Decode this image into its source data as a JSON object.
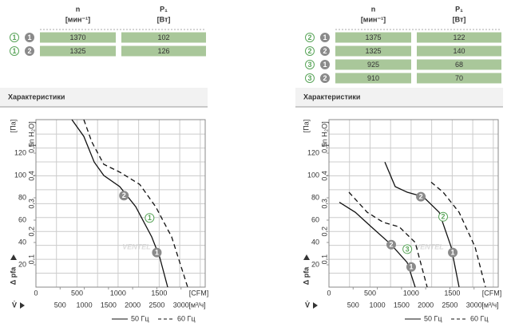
{
  "panels": [
    {
      "table": {
        "columns": [
          {
            "name": "n",
            "unit": "[мин⁻¹]"
          },
          {
            "name": "P₁",
            "unit": "[Вт]"
          }
        ],
        "rows": [
          {
            "curve": "1",
            "variant": "1",
            "cells": [
              1370,
              102
            ]
          },
          {
            "curve": "1",
            "variant": "2",
            "cells": [
              1325,
              126
            ]
          }
        ]
      },
      "section_title": "Характеристики"
    },
    {
      "table": {
        "columns": [
          {
            "name": "n",
            "unit": "[мин⁻¹]"
          },
          {
            "name": "P₁",
            "unit": "[Вт]"
          }
        ],
        "rows": [
          {
            "curve": "2",
            "variant": "1",
            "cells": [
              1375,
              122
            ]
          },
          {
            "curve": "2",
            "variant": "2",
            "cells": [
              1325,
              140
            ]
          },
          {
            "curve": "3",
            "variant": "1",
            "cells": [
              925,
              68
            ]
          },
          {
            "curve": "3",
            "variant": "2",
            "cells": [
              910,
              70
            ]
          }
        ]
      },
      "section_title": "Характеристики"
    }
  ],
  "chart_data": [
    {
      "type": "line",
      "ylabel": "Δ pfa",
      "yunit": "[Па]",
      "y2unit": "[in H₂O]",
      "xlabel": "V̇",
      "xunit": "[м³/ч]",
      "x2unit": "[CFM]",
      "xlim": [
        0,
        3500
      ],
      "xticks": [
        500,
        1000,
        1500,
        2000,
        2500,
        3000
      ],
      "x2lim": [
        0,
        2060
      ],
      "x2ticks": [
        0,
        500,
        1000,
        1500
      ],
      "x2minor": [
        250,
        750,
        1250,
        1750,
        2000
      ],
      "ylim": [
        0,
        150
      ],
      "yticks": [
        20,
        40,
        60,
        80,
        100,
        120
      ],
      "y2lim": [
        0,
        0.602
      ],
      "y2ticks": [
        {
          "value": 0.1,
          "label": "0,1"
        },
        {
          "value": 0.2,
          "label": "0,2"
        },
        {
          "value": 0.3,
          "label": "0,3"
        },
        {
          "value": 0.4,
          "label": "0,4"
        },
        {
          "value": 0.5,
          "label": "0,5"
        }
      ],
      "y2minor": [
        0.05,
        0.15,
        0.25,
        0.35,
        0.45,
        0.55
      ],
      "grid": true,
      "series": [
        {
          "style": "solid",
          "x": [
            743,
            990,
            1205,
            1403,
            1733,
            2064,
            2394,
            2558,
            2724
          ],
          "values": [
            150,
            135,
            112,
            100,
            90,
            72,
            45,
            27,
            0
          ]
        },
        {
          "style": "dashed",
          "x": [
            990,
            1156,
            1403,
            1733,
            2146,
            2476,
            2806,
            3137
          ],
          "values": [
            150,
            130,
            110,
            103,
            92,
            72,
            45,
            0
          ]
        }
      ],
      "markers": [
        {
          "label": "2",
          "kind": "gray",
          "x": 1820,
          "y": 82
        },
        {
          "label": "1",
          "kind": "gray",
          "x": 2500,
          "y": 31
        },
        {
          "label": "1",
          "kind": "green",
          "x": 2350,
          "y": 62
        }
      ],
      "legend": [
        {
          "label": "50 Гц",
          "style": "solid"
        },
        {
          "label": "60 Гц",
          "style": "dashed"
        }
      ],
      "watermark": "VENTEL"
    },
    {
      "type": "line",
      "ylabel": "Δ pfa",
      "yunit": "[Па]",
      "y2unit": "[in H₂O]",
      "xlabel": "V̇",
      "xunit": "[м³/ч]",
      "x2unit": "[CFM]",
      "xlim": [
        0,
        3500
      ],
      "xticks": [
        500,
        1000,
        1500,
        2000,
        2500,
        3000
      ],
      "x2lim": [
        0,
        2060
      ],
      "x2ticks": [
        0,
        500,
        1000,
        1500
      ],
      "x2minor": [
        250,
        750,
        1250,
        1750,
        2000
      ],
      "ylim": [
        0,
        150
      ],
      "yticks": [
        20,
        40,
        60,
        80,
        100,
        120
      ],
      "y2lim": [
        0,
        0.602
      ],
      "y2ticks": [
        {
          "value": 0.1,
          "label": "0,1"
        },
        {
          "value": 0.2,
          "label": "0,2"
        },
        {
          "value": 0.3,
          "label": "0,3"
        },
        {
          "value": 0.4,
          "label": "0,4"
        },
        {
          "value": 0.5,
          "label": "0,5"
        }
      ],
      "y2minor": [
        0.05,
        0.15,
        0.25,
        0.35,
        0.45,
        0.55
      ],
      "grid": true,
      "series": [
        {
          "style": "solid",
          "x": [
            1156,
            1370,
            1618,
            1948,
            2279,
            2526,
            2691
          ],
          "values": [
            112,
            90,
            85,
            81,
            67,
            36,
            0
          ]
        },
        {
          "style": "dashed",
          "x": [
            2113,
            2361,
            2691,
            3021,
            3236
          ],
          "values": [
            94,
            85,
            67,
            36,
            0
          ]
        },
        {
          "style": "solid",
          "x": [
            215,
            545,
            875,
            1288,
            1618,
            1783
          ],
          "values": [
            76,
            67,
            54,
            38,
            22,
            0
          ]
        },
        {
          "style": "dashed",
          "x": [
            413,
            792,
            1123,
            1453,
            1783,
            2031
          ],
          "values": [
            85,
            67,
            58,
            54,
            40,
            0
          ]
        }
      ],
      "markers": [
        {
          "label": "2",
          "kind": "gray",
          "x": 1900,
          "y": 81
        },
        {
          "label": "2",
          "kind": "green",
          "x": 2361,
          "y": 63
        },
        {
          "label": "1",
          "kind": "gray",
          "x": 2560,
          "y": 31
        },
        {
          "label": "2",
          "kind": "gray",
          "x": 1288,
          "y": 38
        },
        {
          "label": "3",
          "kind": "green",
          "x": 1620,
          "y": 34
        },
        {
          "label": "1",
          "kind": "gray",
          "x": 1700,
          "y": 18
        }
      ],
      "legend": [
        {
          "label": "50 Гц",
          "style": "solid"
        },
        {
          "label": "60 Гц",
          "style": "dashed"
        }
      ],
      "watermark": "VENTEL"
    }
  ]
}
